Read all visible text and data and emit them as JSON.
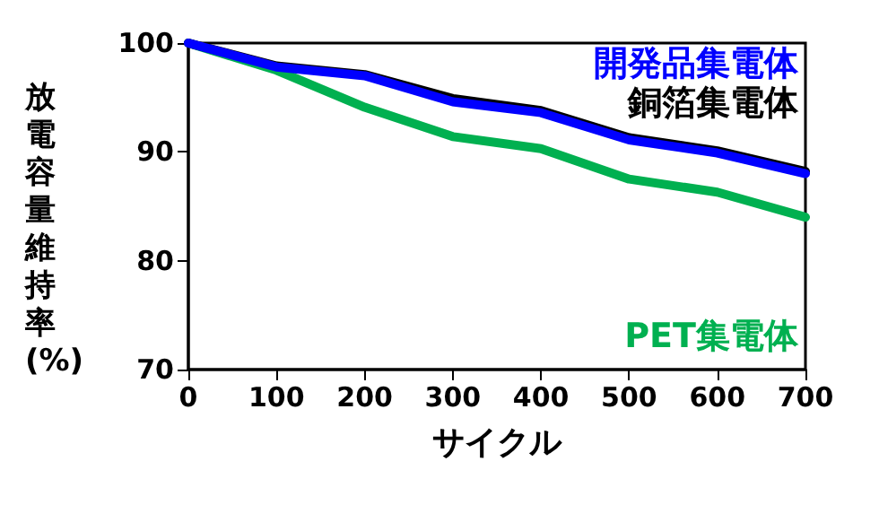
{
  "chart_data": {
    "type": "line",
    "xlabel": "サイクル",
    "ylabel": "放電容量維持率(%)",
    "x": [
      0,
      100,
      200,
      300,
      400,
      500,
      600,
      700
    ],
    "series": [
      {
        "name": "開発品集電体",
        "color": "#0000ff",
        "values": [
          100,
          97.8,
          97.0,
          94.6,
          93.6,
          91.1,
          89.9,
          88.0
        ]
      },
      {
        "name": "銅箔集電体",
        "color": "#000000",
        "values": [
          100,
          97.9,
          97.1,
          94.9,
          93.8,
          91.3,
          90.1,
          88.2
        ]
      },
      {
        "name": "PET集電体",
        "color": "#00b050",
        "values": [
          100,
          97.5,
          94.1,
          91.4,
          90.3,
          87.5,
          86.3,
          84.0
        ]
      }
    ],
    "xlim": [
      0,
      700
    ],
    "xticks": [
      0,
      100,
      200,
      300,
      400,
      500,
      600,
      700
    ],
    "ylim": [
      70,
      100
    ],
    "yticks": [
      70,
      80,
      90,
      100
    ],
    "grid": false,
    "legend": false,
    "marker": "none",
    "line_style": "solid"
  }
}
